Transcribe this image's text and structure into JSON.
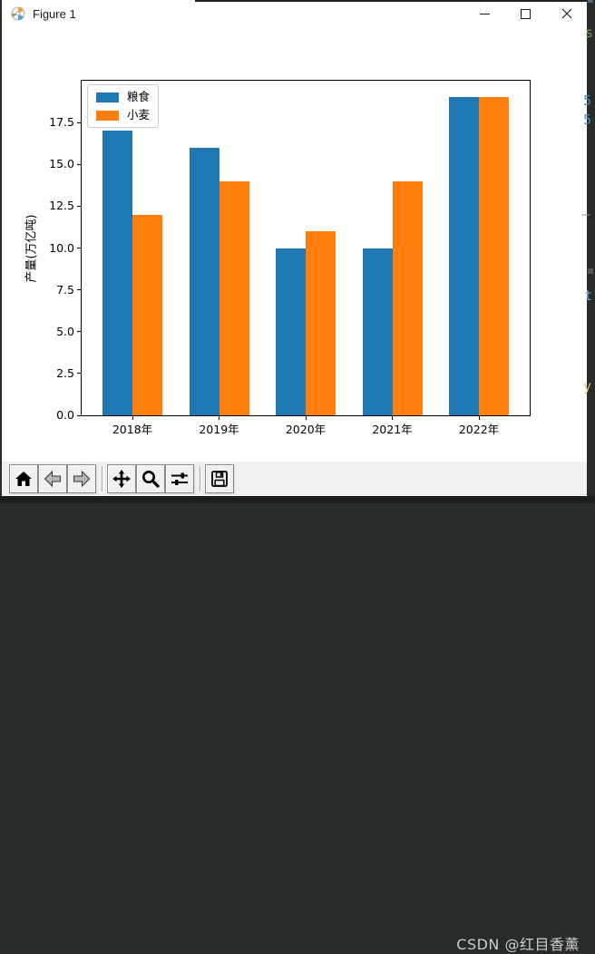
{
  "window": {
    "title": "Figure 1"
  },
  "chart_data": {
    "type": "bar",
    "title": "",
    "xlabel": "",
    "ylabel": "产量(万亿吨)",
    "categories": [
      "2018年",
      "2019年",
      "2020年",
      "2021年",
      "2022年"
    ],
    "series": [
      {
        "name": "粮食",
        "color": "#1f77b4",
        "values": [
          17,
          16,
          10,
          10,
          19
        ]
      },
      {
        "name": "小麦",
        "color": "#ff7f0e",
        "values": [
          12,
          14,
          11,
          14,
          19
        ]
      }
    ],
    "ylim": [
      0,
      20
    ],
    "yticks": [
      0.0,
      2.5,
      5.0,
      7.5,
      10.0,
      12.5,
      15.0,
      17.5
    ],
    "ytick_labels": [
      "0.0",
      "2.5",
      "5.0",
      "7.5",
      "10.0",
      "12.5",
      "15.0",
      "17.5"
    ],
    "legend_position": "upper left",
    "grid": false
  },
  "toolbar": {
    "buttons": [
      {
        "name": "home",
        "icon": "home-icon"
      },
      {
        "name": "back",
        "icon": "arrow-left-icon"
      },
      {
        "name": "forward",
        "icon": "arrow-right-icon"
      },
      {
        "name": "pan",
        "icon": "move-arrows-icon"
      },
      {
        "name": "zoom",
        "icon": "magnifier-icon"
      },
      {
        "name": "configure-subplots",
        "icon": "sliders-icon"
      },
      {
        "name": "save",
        "icon": "floppy-disk-icon"
      }
    ],
    "watermark": "CSDN @红目香薰"
  },
  "background": {
    "fragments": [
      "s",
      "5",
      "5",
      "—",
      "t",
      "y"
    ]
  }
}
